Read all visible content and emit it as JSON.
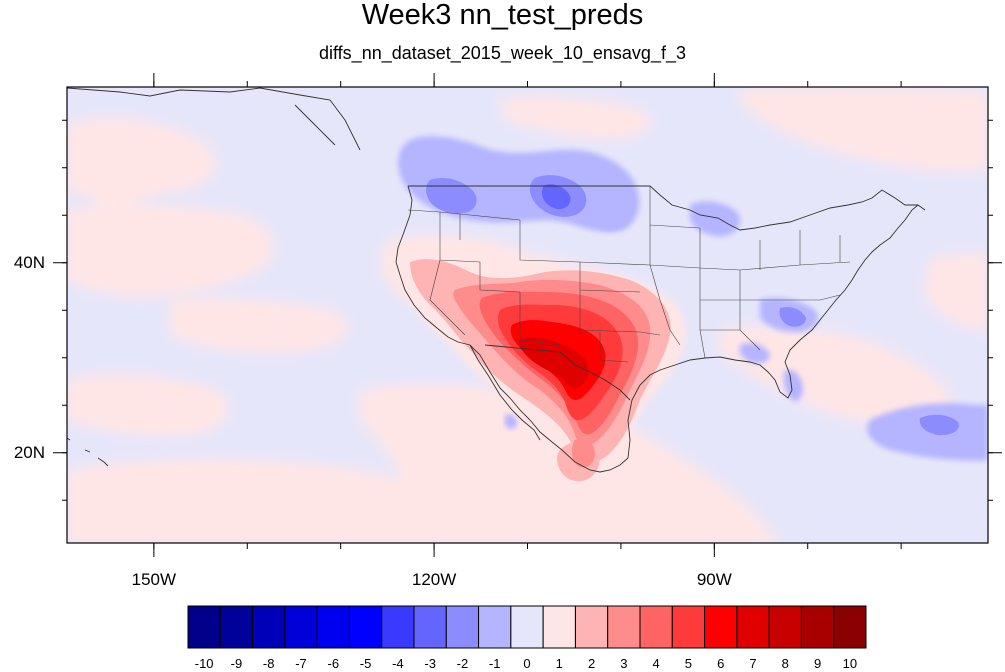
{
  "title": "Week3 nn_test_preds",
  "subtitle": "diffs_nn_dataset_2015_week_10_ensavg_f_3",
  "map": {
    "lon_ticks": [
      {
        "value": -150,
        "label": "150W"
      },
      {
        "value": -120,
        "label": "120W"
      },
      {
        "value": -90,
        "label": "90W"
      }
    ],
    "lat_ticks": [
      {
        "value": 40,
        "label": "40N"
      },
      {
        "value": 20,
        "label": "20N"
      }
    ],
    "lon_range": [
      -159.3,
      -60.7
    ],
    "lat_range": [
      10.5,
      58.5
    ],
    "colors": {
      "background": "#e6e6fa",
      "border": "#000000",
      "coast": "#333333"
    }
  },
  "colorbar": {
    "labels": [
      "-10",
      "-9",
      "-8",
      "-7",
      "-6",
      "-5",
      "-4",
      "-3",
      "-2",
      "-1",
      "0",
      "1",
      "2",
      "3",
      "4",
      "5",
      "6",
      "7",
      "8",
      "9",
      "10"
    ],
    "colors": [
      "#00008b",
      "#00009a",
      "#0000b8",
      "#0000d8",
      "#0000f0",
      "#0000ff",
      "#3a3aff",
      "#6464ff",
      "#8c8cff",
      "#b4b4ff",
      "#e6e6fa",
      "#ffe6e6",
      "#ffb4b4",
      "#ff8c8c",
      "#ff6464",
      "#ff3a3a",
      "#ff0000",
      "#e00000",
      "#c80000",
      "#a80000",
      "#8b0000"
    ]
  }
}
